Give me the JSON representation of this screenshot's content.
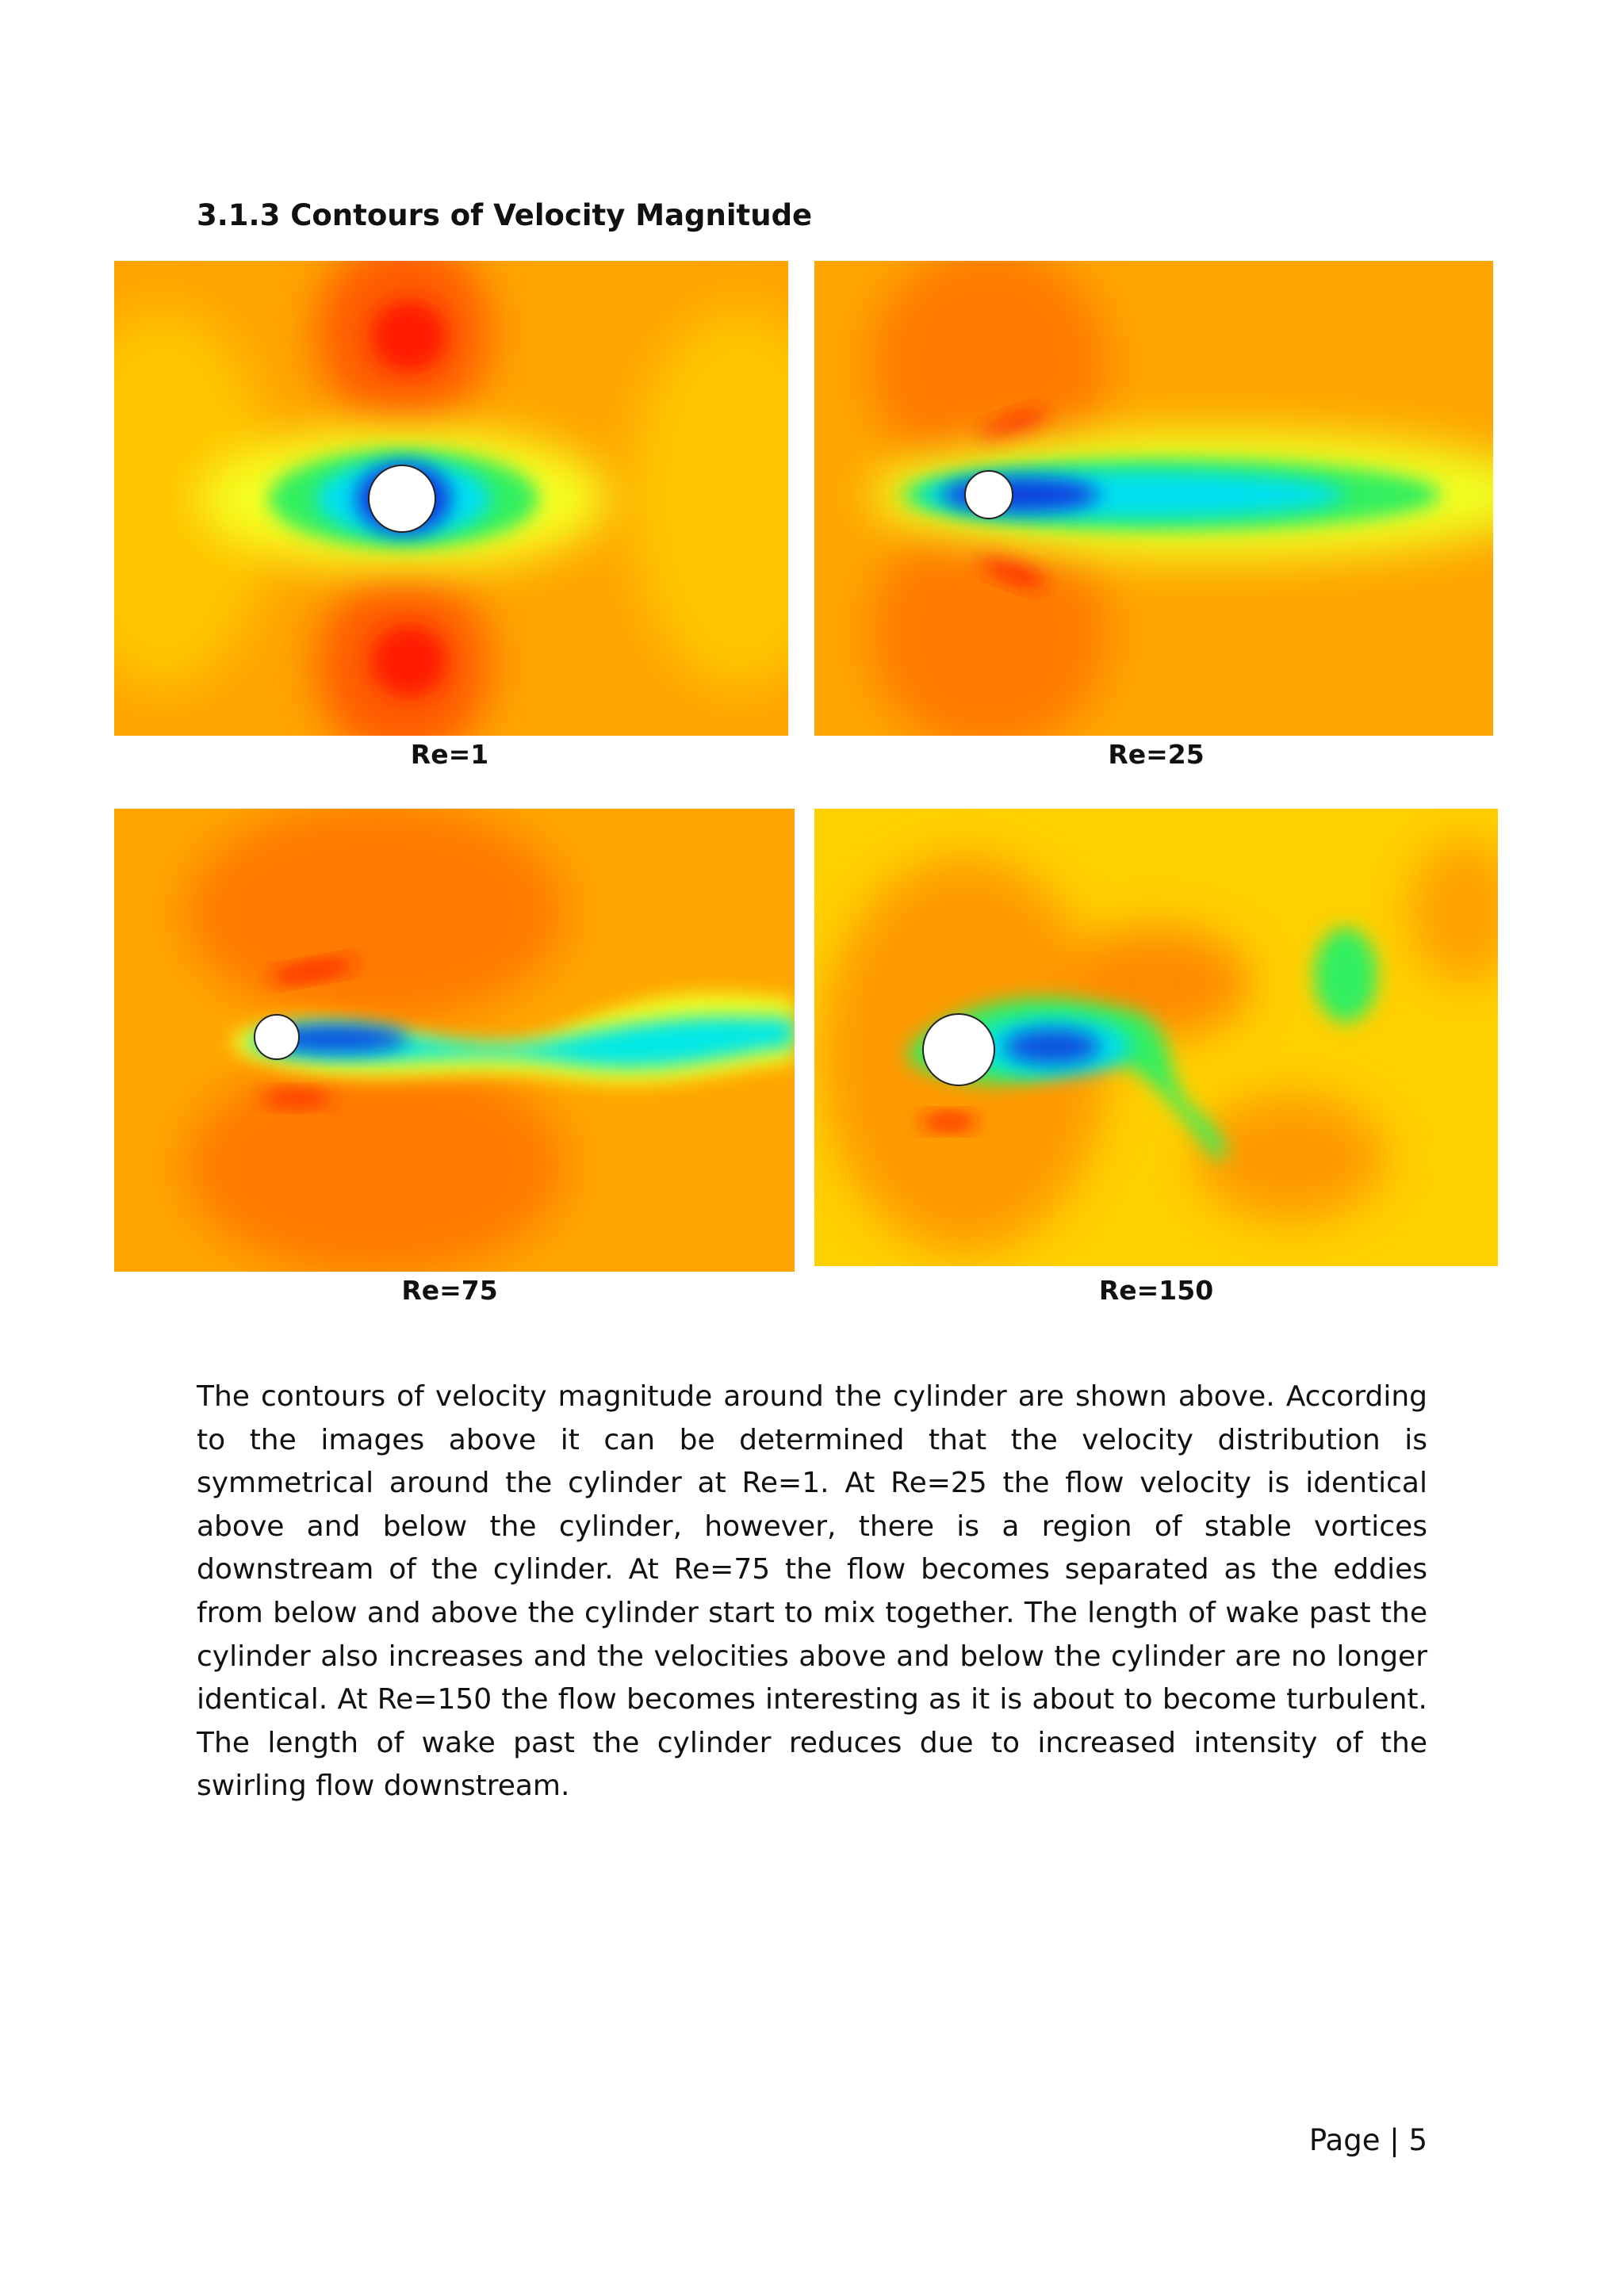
{
  "heading": "3.1.3 Contours of Velocity Magnitude",
  "figures": [
    {
      "caption": "Re=1"
    },
    {
      "caption": "Re=25"
    },
    {
      "caption": "Re=75"
    },
    {
      "caption": "Re=150"
    }
  ],
  "paragraph": "The contours of velocity magnitude around the cylinder are shown above. According to the images above it can be determined that the velocity distribution is symmetrical around the cylinder at Re=1. At Re=25 the flow velocity is identical above and below the cylinder, however, there is a region of stable vortices downstream of the cylinder. At Re=75 the flow becomes separated as the eddies from below and above the cylinder start to mix together. The length of wake past the cylinder also increases and the velocities above and below the cylinder are no longer identical. At Re=150 the flow becomes interesting as it is about to become turbulent. The length of wake past the cylinder reduces due to increased intensity of the swirling flow downstream.",
  "footer": "Page | 5"
}
